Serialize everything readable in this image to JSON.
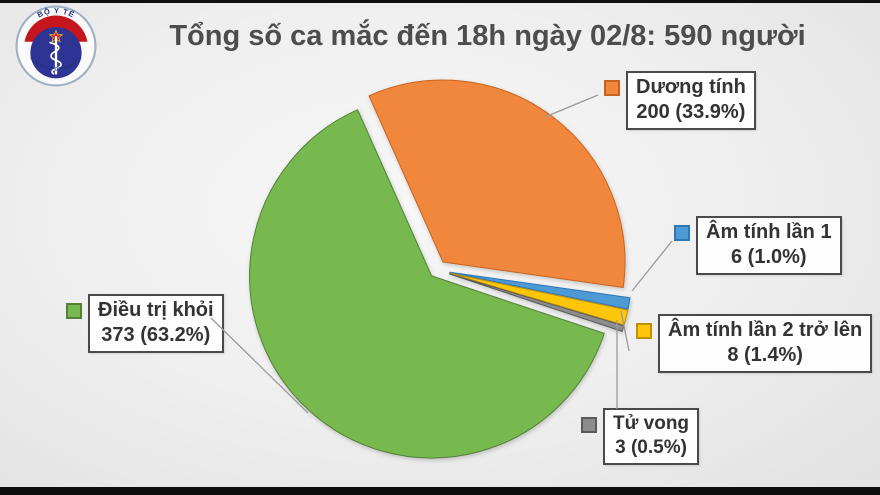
{
  "header": {
    "title": "Tổng số ca mắc đến 18h ngày 02/8: 590 người"
  },
  "logo": {
    "top_text": "BỘ Y TẾ",
    "bottom_text": "MINISTRY OF HEALTH",
    "ring_text_color": "#21327E",
    "band_color": "#C4161C",
    "disc_color": "#2D3494"
  },
  "chart_data": {
    "type": "pie",
    "title": "Tổng số ca mắc đến 18h ngày 02/8: 590 người",
    "total": 590,
    "start_angle_deg": -24,
    "legend_position": "callouts-around-pie",
    "slices": [
      {
        "label": "Dương tính",
        "value": 200,
        "pct": 33.9,
        "stat": "200 (33.9%)",
        "color": "#F0873C",
        "stroke": "#C9641F"
      },
      {
        "label": "Âm tính lần 1",
        "value": 6,
        "pct": 1.0,
        "stat": "6 (1.0%)",
        "color": "#4D9AD4",
        "stroke": "#2E75B6"
      },
      {
        "label": "Âm tính lần 2 trở lên",
        "value": 8,
        "pct": 1.4,
        "stat": "8 (1.4%)",
        "color": "#FDC609",
        "stroke": "#BF9000"
      },
      {
        "label": "Tử vong",
        "value": 3,
        "pct": 0.5,
        "stat": "3 (0.5%)",
        "color": "#8C8C8C",
        "stroke": "#595959"
      },
      {
        "label": "Điều trị khỏi",
        "value": 373,
        "pct": 63.2,
        "stat": "373 (63.2%)",
        "color": "#77B84F",
        "stroke": "#538135"
      }
    ]
  }
}
